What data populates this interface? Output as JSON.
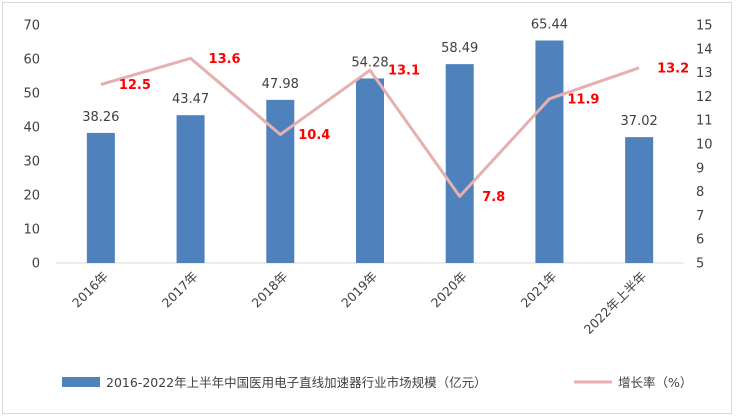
{
  "chart_data": {
    "type": "bar",
    "categories": [
      "2016年",
      "2017年",
      "2018年",
      "2019年",
      "2020年",
      "2021年",
      "2022年上半年"
    ],
    "series": [
      {
        "name": "2016-2022年上半年中国医用电子直线加速器行业市场规模（亿元）",
        "type": "bar",
        "axis": "left",
        "values": [
          38.26,
          43.47,
          47.98,
          54.28,
          58.49,
          65.44,
          37.02
        ],
        "color": "#4f81bd"
      },
      {
        "name": "增长率（%）",
        "type": "line",
        "axis": "right",
        "values": [
          12.5,
          13.6,
          10.4,
          13.1,
          7.8,
          11.9,
          13.2
        ],
        "color": "#e6b0b0",
        "label_color": "#ff0000"
      }
    ],
    "y_left": {
      "min": 0,
      "max": 70,
      "ticks": [
        0,
        10,
        20,
        30,
        40,
        50,
        60,
        70
      ]
    },
    "y_right": {
      "min": 5,
      "max": 15,
      "ticks": [
        5,
        6,
        7,
        8,
        9,
        10,
        11,
        12,
        13,
        14,
        15
      ]
    },
    "legend_position": "bottom",
    "grid": false
  }
}
